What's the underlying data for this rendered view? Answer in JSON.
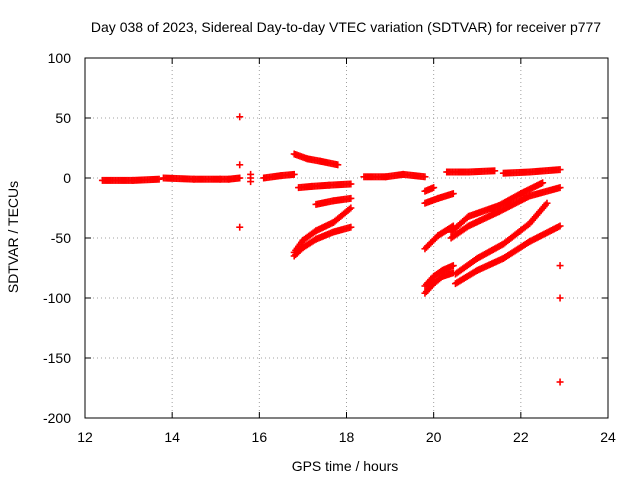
{
  "chart_data": {
    "type": "scatter",
    "title": "Day 038 of 2023, Sidereal Day-to-day VTEC variation (SDTVAR) for receiver p777",
    "xlabel": "GPS time / hours",
    "ylabel": "SDTVAR / TECUs",
    "xlim": [
      12,
      24
    ],
    "ylim": [
      -200,
      100
    ],
    "x_ticks": [
      12,
      14,
      16,
      18,
      20,
      22,
      24
    ],
    "y_ticks": [
      100,
      50,
      0,
      -50,
      -100,
      -150,
      -200
    ],
    "grid": true,
    "marker": "+",
    "color": "#ff0000",
    "segments": [
      {
        "name": "arc-1",
        "x": [
          12.4,
          13.1,
          13.7
        ],
        "y": [
          -2,
          -2,
          -1
        ]
      },
      {
        "name": "arc-2",
        "x": [
          13.8,
          14.5,
          15.1
        ],
        "y": [
          0,
          -1,
          -1
        ]
      },
      {
        "name": "arc-3",
        "x": [
          15.1,
          15.3,
          15.55
        ],
        "y": [
          -1,
          -1,
          0
        ]
      },
      {
        "name": "arc-4",
        "x": [
          16.1,
          16.5,
          16.8
        ],
        "y": [
          0,
          2,
          3
        ]
      },
      {
        "name": "arc-5",
        "x": [
          16.8,
          17.1,
          17.4,
          17.8
        ],
        "y": [
          20,
          16,
          14,
          11
        ]
      },
      {
        "name": "arc-6",
        "x": [
          16.9,
          17.2,
          17.6,
          18.1
        ],
        "y": [
          -8,
          -7,
          -6,
          -5
        ]
      },
      {
        "name": "arc-7",
        "x": [
          17.3,
          17.7,
          18.1
        ],
        "y": [
          -22,
          -19,
          -17
        ]
      },
      {
        "name": "arc-8",
        "x": [
          16.8,
          17.0,
          17.3,
          17.7,
          18.1
        ],
        "y": [
          -62,
          -52,
          -44,
          -37,
          -25
        ]
      },
      {
        "name": "arc-9",
        "x": [
          16.8,
          17.0,
          17.3,
          17.7,
          18.1
        ],
        "y": [
          -65,
          -58,
          -51,
          -45,
          -41
        ]
      },
      {
        "name": "arc-10",
        "x": [
          18.4,
          18.9,
          19.3,
          19.8
        ],
        "y": [
          1,
          1,
          3,
          1
        ]
      },
      {
        "name": "arc-11",
        "x": [
          19.8,
          20.0
        ],
        "y": [
          -11,
          -8
        ]
      },
      {
        "name": "arc-12",
        "x": [
          19.8,
          20.1,
          20.45
        ],
        "y": [
          -21,
          -17,
          -13
        ]
      },
      {
        "name": "arc-13",
        "x": [
          19.8,
          20.1,
          20.45
        ],
        "y": [
          -59,
          -48,
          -40
        ]
      },
      {
        "name": "arc-14",
        "x": [
          19.8,
          20.0,
          20.2,
          20.45
        ],
        "y": [
          -90,
          -82,
          -77,
          -73
        ]
      },
      {
        "name": "arc-15",
        "x": [
          19.8,
          20.0,
          20.2,
          20.45
        ],
        "y": [
          -96,
          -88,
          -82,
          -79
        ]
      },
      {
        "name": "arc-16",
        "x": [
          20.3,
          20.8,
          21.4
        ],
        "y": [
          5,
          5,
          6
        ]
      },
      {
        "name": "arc-17",
        "x": [
          21.6,
          22.2,
          22.9
        ],
        "y": [
          4,
          5,
          7
        ]
      },
      {
        "name": "arc-18",
        "x": [
          20.4,
          20.8,
          21.5,
          22.0,
          22.5
        ],
        "y": [
          -45,
          -32,
          -23,
          -13,
          -4
        ]
      },
      {
        "name": "arc-19",
        "x": [
          20.4,
          20.8,
          21.5,
          22.2,
          22.9
        ],
        "y": [
          -50,
          -40,
          -28,
          -15,
          -8
        ]
      },
      {
        "name": "arc-20",
        "x": [
          20.5,
          21.0,
          21.6,
          22.2,
          22.6
        ],
        "y": [
          -80,
          -67,
          -55,
          -38,
          -21
        ]
      },
      {
        "name": "arc-21",
        "x": [
          20.5,
          21.0,
          21.6,
          22.2,
          22.9
        ],
        "y": [
          -88,
          -77,
          -67,
          -53,
          -40
        ]
      }
    ],
    "isolated_points": [
      {
        "x": 15.55,
        "y": 51
      },
      {
        "x": 15.55,
        "y": 11
      },
      {
        "x": 15.55,
        "y": -41
      },
      {
        "x": 15.8,
        "y": 0
      },
      {
        "x": 15.8,
        "y": 3
      },
      {
        "x": 15.8,
        "y": -3
      },
      {
        "x": 22.9,
        "y": -73
      },
      {
        "x": 22.9,
        "y": -100
      },
      {
        "x": 22.9,
        "y": -170
      }
    ]
  }
}
